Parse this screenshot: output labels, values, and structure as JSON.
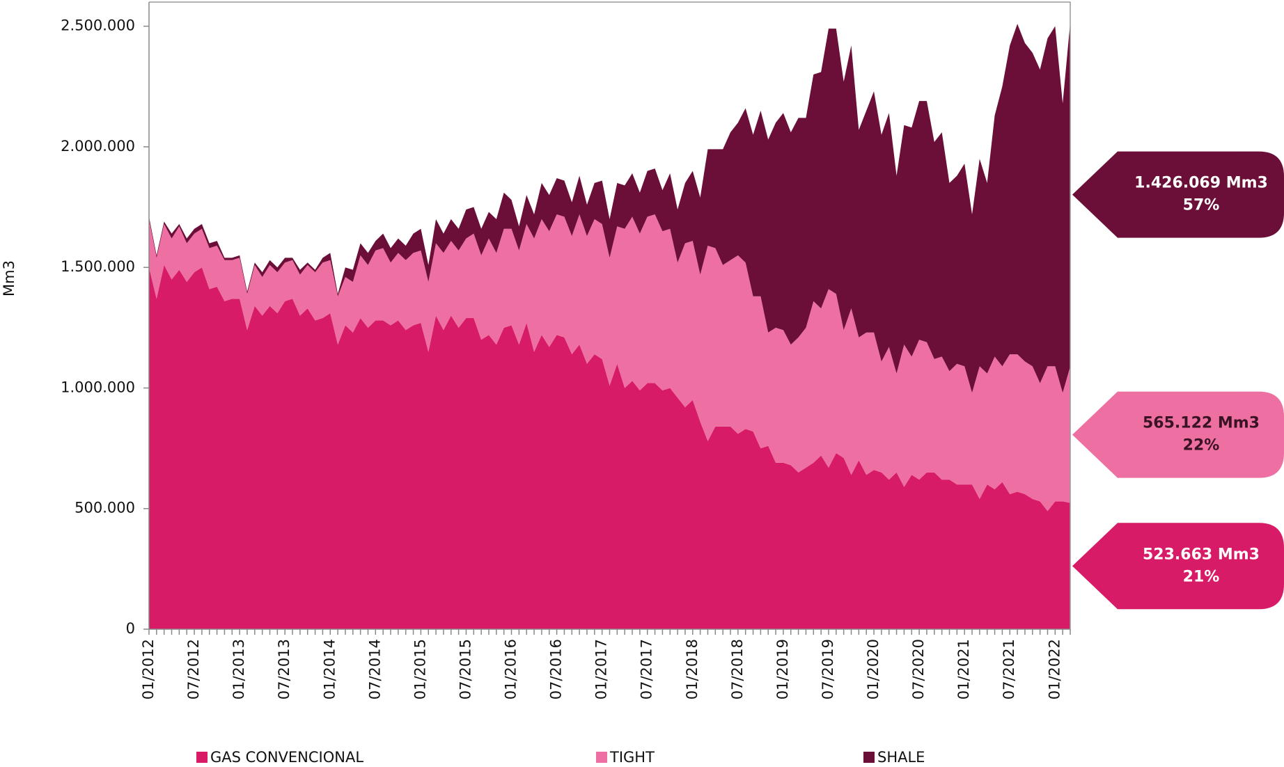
{
  "chart_data": {
    "type": "stacked-area",
    "y_label": "Mm3",
    "categories": [
      "01/2012",
      null,
      null,
      null,
      null,
      null,
      "07/2012",
      null,
      null,
      null,
      null,
      null,
      "01/2013",
      null,
      null,
      null,
      null,
      null,
      "07/2013",
      null,
      null,
      null,
      null,
      null,
      "01/2014",
      null,
      null,
      null,
      null,
      null,
      "07/2014",
      null,
      null,
      null,
      null,
      null,
      "01/2015",
      null,
      null,
      null,
      null,
      null,
      "07/2015",
      null,
      null,
      null,
      null,
      null,
      "01/2016",
      null,
      null,
      null,
      null,
      null,
      "07/2016",
      null,
      null,
      null,
      null,
      null,
      "01/2017",
      null,
      null,
      null,
      null,
      null,
      "07/2017",
      null,
      null,
      null,
      null,
      null,
      "01/2018",
      null,
      null,
      null,
      null,
      null,
      "07/2018",
      null,
      null,
      null,
      null,
      null,
      "01/2019",
      null,
      null,
      null,
      null,
      null,
      "07/2019",
      null,
      null,
      null,
      null,
      null,
      "01/2020",
      null,
      null,
      null,
      null,
      null,
      "07/2020",
      null,
      null,
      null,
      null,
      null,
      "01/2021",
      null,
      null,
      null,
      null,
      null,
      "07/2021",
      null,
      null,
      null,
      null,
      null,
      "01/2022",
      null,
      null
    ],
    "ylim": [
      0,
      2600000
    ],
    "yticks": [
      0,
      {
        "value": 500000,
        "label": "500.000"
      },
      {
        "value": 1000000,
        "label": "1.000.000"
      },
      {
        "value": 1500000,
        "label": "1.500.000"
      },
      {
        "value": 2000000,
        "label": "2.000.000"
      },
      {
        "value": 2500000,
        "label": "2.500.000"
      }
    ],
    "series": [
      {
        "name": "GAS CONVENCIONAL",
        "color": "#d81b66",
        "label": "523.663 Mm3",
        "share": "21%",
        "values": [
          1500000,
          1370000,
          1510000,
          1450000,
          1490000,
          1440000,
          1480000,
          1500000,
          1410000,
          1420000,
          1360000,
          1370000,
          1370000,
          1240000,
          1340000,
          1300000,
          1340000,
          1310000,
          1360000,
          1370000,
          1300000,
          1330000,
          1280000,
          1290000,
          1310000,
          1180000,
          1260000,
          1230000,
          1290000,
          1250000,
          1280000,
          1280000,
          1260000,
          1280000,
          1240000,
          1260000,
          1270000,
          1150000,
          1300000,
          1240000,
          1300000,
          1250000,
          1290000,
          1290000,
          1200000,
          1220000,
          1180000,
          1250000,
          1260000,
          1180000,
          1270000,
          1150000,
          1220000,
          1170000,
          1220000,
          1210000,
          1140000,
          1180000,
          1100000,
          1140000,
          1120000,
          1010000,
          1100000,
          1000000,
          1030000,
          990000,
          1020000,
          1020000,
          990000,
          1000000,
          960000,
          920000,
          950000,
          860000,
          780000,
          840000,
          840000,
          840000,
          810000,
          830000,
          820000,
          750000,
          760000,
          690000,
          690000,
          680000,
          650000,
          670000,
          690000,
          720000,
          670000,
          730000,
          710000,
          640000,
          700000,
          640000,
          660000,
          650000,
          620000,
          650000,
          590000,
          640000,
          620000,
          650000,
          650000,
          620000,
          620000,
          600000,
          600000,
          600000,
          540000,
          600000,
          580000,
          610000,
          560000,
          570000,
          560000,
          540000,
          530000,
          490000,
          530000,
          530000,
          523663
        ]
      },
      {
        "name": "TIGHT",
        "color": "#ee70a2",
        "label": "565.122 Mm3",
        "share": "22%",
        "values": [
          200000,
          170000,
          170000,
          170000,
          180000,
          160000,
          160000,
          160000,
          170000,
          170000,
          170000,
          160000,
          170000,
          150000,
          170000,
          160000,
          170000,
          170000,
          160000,
          160000,
          170000,
          180000,
          200000,
          230000,
          220000,
          200000,
          200000,
          210000,
          260000,
          260000,
          290000,
          300000,
          260000,
          280000,
          290000,
          300000,
          300000,
          290000,
          300000,
          320000,
          310000,
          320000,
          330000,
          350000,
          350000,
          400000,
          380000,
          410000,
          400000,
          390000,
          410000,
          470000,
          480000,
          480000,
          500000,
          500000,
          490000,
          540000,
          530000,
          560000,
          560000,
          530000,
          570000,
          660000,
          680000,
          650000,
          690000,
          700000,
          660000,
          660000,
          560000,
          680000,
          660000,
          610000,
          810000,
          740000,
          670000,
          690000,
          740000,
          690000,
          560000,
          630000,
          470000,
          560000,
          550000,
          500000,
          560000,
          580000,
          670000,
          610000,
          740000,
          660000,
          530000,
          690000,
          510000,
          590000,
          570000,
          460000,
          550000,
          410000,
          590000,
          490000,
          580000,
          540000,
          470000,
          510000,
          450000,
          500000,
          490000,
          380000,
          550000,
          460000,
          550000,
          480000,
          580000,
          570000,
          550000,
          550000,
          490000,
          600000,
          560000,
          450000,
          565122
        ]
      },
      {
        "name": "SHALE",
        "color": "#6b0e38",
        "label": "1.426.069 Mm3",
        "share": "57%",
        "values": [
          10000,
          10000,
          10000,
          20000,
          10000,
          20000,
          20000,
          20000,
          20000,
          20000,
          10000,
          10000,
          10000,
          10000,
          10000,
          20000,
          20000,
          20000,
          20000,
          10000,
          20000,
          10000,
          10000,
          20000,
          30000,
          10000,
          40000,
          50000,
          50000,
          50000,
          40000,
          60000,
          60000,
          60000,
          60000,
          80000,
          90000,
          70000,
          100000,
          80000,
          90000,
          90000,
          120000,
          110000,
          110000,
          110000,
          140000,
          150000,
          120000,
          100000,
          120000,
          100000,
          150000,
          150000,
          150000,
          150000,
          140000,
          160000,
          130000,
          150000,
          180000,
          160000,
          180000,
          180000,
          180000,
          170000,
          190000,
          190000,
          170000,
          230000,
          220000,
          250000,
          290000,
          320000,
          400000,
          410000,
          480000,
          530000,
          550000,
          640000,
          670000,
          770000,
          800000,
          850000,
          900000,
          880000,
          910000,
          870000,
          940000,
          980000,
          1080000,
          1100000,
          1030000,
          1090000,
          860000,
          920000,
          1000000,
          940000,
          970000,
          820000,
          910000,
          950000,
          990000,
          1000000,
          900000,
          930000,
          780000,
          780000,
          840000,
          740000,
          860000,
          790000,
          1000000,
          1160000,
          1280000,
          1370000,
          1320000,
          1300000,
          1300000,
          1360000,
          1410000,
          1200000,
          1426069
        ]
      }
    ]
  }
}
